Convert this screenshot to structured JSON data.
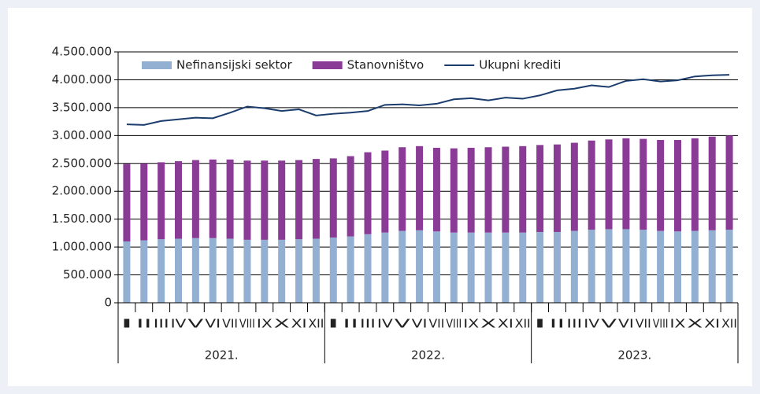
{
  "chart_data": {
    "type": "stacked-bar-line",
    "categories": [
      "I",
      "II",
      "III",
      "IV",
      "V",
      "VI",
      "VII",
      "VIII",
      "IX",
      "X",
      "XI",
      "XII",
      "I",
      "II",
      "III",
      "IV",
      "V",
      "VI",
      "VII",
      "VIII",
      "IX",
      "X",
      "XI",
      "XII",
      "I",
      "II",
      "III",
      "IV",
      "V",
      "VI",
      "VII",
      "VIII",
      "IX",
      "X",
      "XI",
      "XII"
    ],
    "year_groups": [
      "2021.",
      "2022.",
      "2023."
    ],
    "series": [
      {
        "name": "Nefinansijski sektor",
        "color": "#93afd1",
        "kind": "bar",
        "values": [
          1100000,
          1120000,
          1140000,
          1150000,
          1160000,
          1160000,
          1150000,
          1130000,
          1130000,
          1130000,
          1140000,
          1150000,
          1170000,
          1190000,
          1230000,
          1260000,
          1290000,
          1300000,
          1280000,
          1260000,
          1260000,
          1260000,
          1260000,
          1260000,
          1270000,
          1270000,
          1290000,
          1310000,
          1320000,
          1320000,
          1310000,
          1290000,
          1280000,
          1290000,
          1300000,
          1310000
        ]
      },
      {
        "name": "Stanovništvo",
        "color": "#8a3b95",
        "kind": "bar",
        "values": [
          1390000,
          1380000,
          1380000,
          1390000,
          1400000,
          1410000,
          1420000,
          1420000,
          1420000,
          1420000,
          1420000,
          1430000,
          1420000,
          1440000,
          1470000,
          1470000,
          1500000,
          1510000,
          1500000,
          1510000,
          1520000,
          1530000,
          1540000,
          1550000,
          1560000,
          1570000,
          1580000,
          1600000,
          1610000,
          1630000,
          1630000,
          1630000,
          1640000,
          1660000,
          1680000,
          1690000
        ]
      },
      {
        "name": "Ukupni krediti",
        "color": "#1b3d6d",
        "kind": "line",
        "values": [
          3200000,
          3190000,
          3260000,
          3290000,
          3320000,
          3310000,
          3410000,
          3520000,
          3490000,
          3440000,
          3470000,
          3360000,
          3390000,
          3410000,
          3440000,
          3550000,
          3560000,
          3540000,
          3570000,
          3650000,
          3670000,
          3630000,
          3680000,
          3660000,
          3720000,
          3810000,
          3840000,
          3900000,
          3870000,
          3980000,
          4010000,
          3970000,
          3990000,
          4060000,
          4080000,
          4090000
        ]
      }
    ],
    "ylim": [
      0,
      4500000
    ],
    "yticks": [
      0,
      {
        "value": 500000,
        "label": "500.000"
      },
      {
        "value": 1000000,
        "label": "1.000.000"
      },
      {
        "value": 1500000,
        "label": "1.500.000"
      },
      {
        "value": 2000000,
        "label": "2.000.000"
      },
      {
        "value": 2500000,
        "label": "2.500.000"
      },
      {
        "value": 3000000,
        "label": "3.000.000"
      },
      {
        "value": 3500000,
        "label": "3.500.000"
      },
      {
        "value": 4000000,
        "label": "4.000.000"
      },
      {
        "value": 4500000,
        "label": "4.500.000"
      }
    ],
    "grid": true
  }
}
